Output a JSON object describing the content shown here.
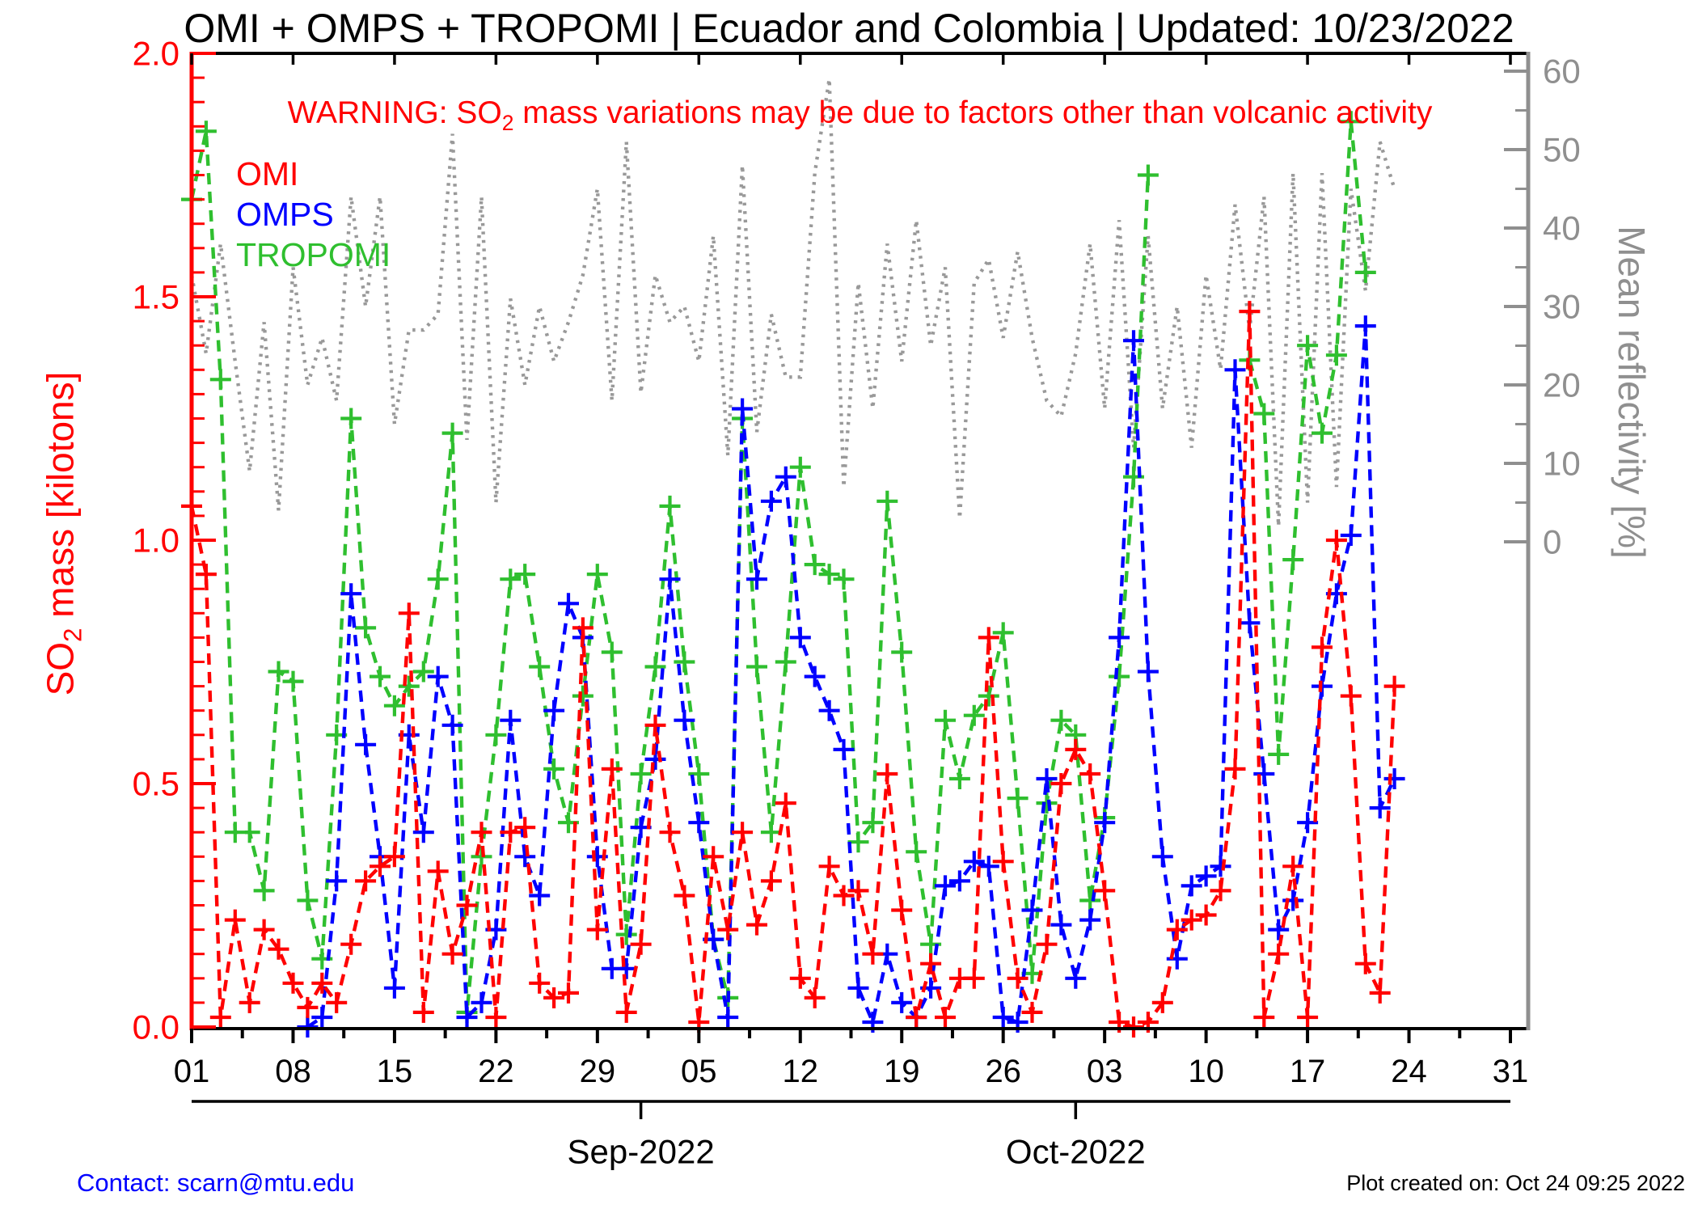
{
  "title": "OMI + OMPS + TROPOMI | Ecuador and Colombia | Updated: 10/23/2022",
  "warning": {
    "pre": "WARNING: SO",
    "sub": "2",
    "post": " mass variations may be due to factors other than volcanic activity"
  },
  "legend": [
    {
      "label": "OMI",
      "color": "#ff0000"
    },
    {
      "label": "OMPS",
      "color": "#0000ff"
    },
    {
      "label": "TROPOMI",
      "color": "#2fbf2f"
    }
  ],
  "y_left": {
    "label_pre": "SO",
    "label_sub": "2",
    "label_post": " mass [kilotons]",
    "tick_labels": [
      "2.0",
      "1.5",
      "1.0",
      "0.5",
      "0.0"
    ],
    "color": "#ff0000"
  },
  "y_right": {
    "label": "Mean reflectivity [%]",
    "tick_labels": [
      "60",
      "50",
      "40",
      "30",
      "20",
      "10",
      "0"
    ],
    "color": "#8f8f8f"
  },
  "x_axis": {
    "tick_labels": [
      "01",
      "08",
      "15",
      "22",
      "29",
      "05",
      "12",
      "19",
      "26",
      "03",
      "10",
      "17",
      "24",
      "31"
    ],
    "month_labels": [
      "Sep-2022",
      "Oct-2022"
    ]
  },
  "footer": {
    "contact": "Contact: scarn@mtu.edu",
    "created": "Plot created on: Oct 24 09:25 2022"
  },
  "chart_data": {
    "type": "line",
    "title": "OMI + OMPS + TROPOMI | Ecuador and Colombia | Updated: 10/23/2022",
    "x_start_date": "2022-08-01",
    "x_end_date": "2022-10-31",
    "x_cadence": "daily",
    "x_tick_days": [
      0,
      7,
      14,
      21,
      28,
      35,
      42,
      49,
      56,
      63,
      70,
      77,
      84,
      91
    ],
    "x_tick_labels": [
      "01",
      "08",
      "15",
      "22",
      "29",
      "05",
      "12",
      "19",
      "26",
      "03",
      "10",
      "17",
      "24",
      "31"
    ],
    "month_boundary_days": {
      "Sep-2022": 31,
      "Oct-2022": 61
    },
    "ylabel_left": "SO2 mass [kilotons]",
    "ylabel_right": "Mean reflectivity [%]",
    "ylim_left": [
      0,
      2
    ],
    "ylim_right": [
      0,
      60
    ],
    "grid": false,
    "legend_position": "top-left",
    "series": [
      {
        "name": "OMI",
        "axis": "left",
        "color": "#ff0000",
        "style": "dashed-plus",
        "values": [
          1.07,
          0.93,
          0.02,
          0.22,
          0.05,
          0.2,
          0.16,
          0.09,
          0.04,
          0.09,
          0.05,
          0.17,
          0.3,
          0.33,
          0.35,
          0.85,
          0.03,
          0.32,
          0.15,
          0.25,
          0.4,
          0.02,
          0.4,
          0.41,
          0.09,
          0.06,
          0.07,
          0.82,
          0.2,
          0.53,
          0.03,
          0.17,
          0.62,
          0.4,
          0.27,
          0.01,
          0.35,
          0.2,
          0.4,
          0.21,
          0.3,
          0.46,
          0.1,
          0.06,
          0.33,
          0.27,
          0.28,
          0.15,
          0.52,
          0.24,
          0.02,
          0.13,
          0.02,
          0.1,
          0.1,
          0.8,
          0.34,
          0.1,
          0.03,
          0.17,
          0.5,
          0.57,
          0.52,
          0.28,
          0.01,
          0.0,
          0.01,
          0.05,
          0.2,
          0.22,
          0.23,
          0.28,
          0.53,
          1.47,
          0.02,
          0.15,
          0.33,
          0.02,
          0.78,
          1.0,
          0.68,
          0.13,
          0.07,
          0.7,
          null,
          null,
          null,
          null,
          null,
          null,
          null,
          null
        ]
      },
      {
        "name": "OMPS",
        "axis": "left",
        "color": "#0000ff",
        "style": "dashed-plus",
        "values": [
          null,
          null,
          null,
          null,
          null,
          null,
          null,
          null,
          0.0,
          0.02,
          0.3,
          0.89,
          0.58,
          0.35,
          0.08,
          0.6,
          0.4,
          0.72,
          0.62,
          0.02,
          0.05,
          0.2,
          0.63,
          0.35,
          0.27,
          0.65,
          0.87,
          0.8,
          0.35,
          0.12,
          0.12,
          0.41,
          0.55,
          0.92,
          0.63,
          0.42,
          0.18,
          0.02,
          1.27,
          0.92,
          1.08,
          1.13,
          0.8,
          0.72,
          0.65,
          0.57,
          0.08,
          0.01,
          0.15,
          0.05,
          0.02,
          0.08,
          0.29,
          0.3,
          0.34,
          0.33,
          0.02,
          0.01,
          0.24,
          0.51,
          0.21,
          0.1,
          0.22,
          0.42,
          0.8,
          1.41,
          0.73,
          0.35,
          0.14,
          0.29,
          0.31,
          0.33,
          1.35,
          0.83,
          0.52,
          0.2,
          0.26,
          0.42,
          0.7,
          0.89,
          1.01,
          1.44,
          0.45,
          0.51,
          null,
          null,
          null,
          null,
          null,
          null,
          null,
          null
        ]
      },
      {
        "name": "TROPOMI",
        "axis": "left",
        "color": "#2fbf2f",
        "style": "dashed-plus",
        "values": [
          1.7,
          1.84,
          1.33,
          0.4,
          0.4,
          0.28,
          0.73,
          0.71,
          0.26,
          0.14,
          0.6,
          1.25,
          0.82,
          0.72,
          0.66,
          0.7,
          0.73,
          0.92,
          1.22,
          0.03,
          0.35,
          0.6,
          0.92,
          0.93,
          0.74,
          0.53,
          0.42,
          0.68,
          0.93,
          0.77,
          0.19,
          0.52,
          0.74,
          1.07,
          0.75,
          0.52,
          0.18,
          0.06,
          1.25,
          0.74,
          0.4,
          0.75,
          1.15,
          0.95,
          0.93,
          0.92,
          0.38,
          0.42,
          1.08,
          0.77,
          0.36,
          0.17,
          0.63,
          0.51,
          0.64,
          0.68,
          0.81,
          0.47,
          0.11,
          0.46,
          0.63,
          0.6,
          0.26,
          0.43,
          0.72,
          1.13,
          1.75,
          null,
          null,
          null,
          null,
          null,
          null,
          1.37,
          1.26,
          0.56,
          0.96,
          1.4,
          1.22,
          1.38,
          1.86,
          1.55,
          null,
          null,
          null,
          null,
          null,
          null,
          null,
          null,
          null,
          null
        ]
      },
      {
        "name": "Mean reflectivity",
        "axis": "right",
        "color": "#999999",
        "style": "dotted",
        "values": [
          34,
          24,
          38,
          23,
          9,
          28,
          4,
          35,
          20,
          26,
          18,
          44,
          30,
          44,
          15,
          27,
          27,
          29,
          52,
          13,
          44,
          5,
          31,
          20,
          30,
          23,
          28,
          34,
          45,
          18,
          51,
          19,
          34,
          28,
          30,
          23,
          39,
          11,
          48,
          14,
          29,
          21,
          21,
          47,
          59,
          7,
          33,
          17,
          38,
          23,
          41,
          25,
          35,
          3,
          33,
          36,
          26,
          37,
          26,
          18,
          16,
          24,
          38,
          17,
          41,
          12,
          39,
          17,
          30,
          12,
          34,
          22,
          43,
          27,
          44,
          2,
          47,
          5,
          47,
          7,
          45,
          32,
          51,
          45,
          null,
          null,
          null,
          null,
          null,
          null,
          null,
          null
        ]
      }
    ]
  }
}
